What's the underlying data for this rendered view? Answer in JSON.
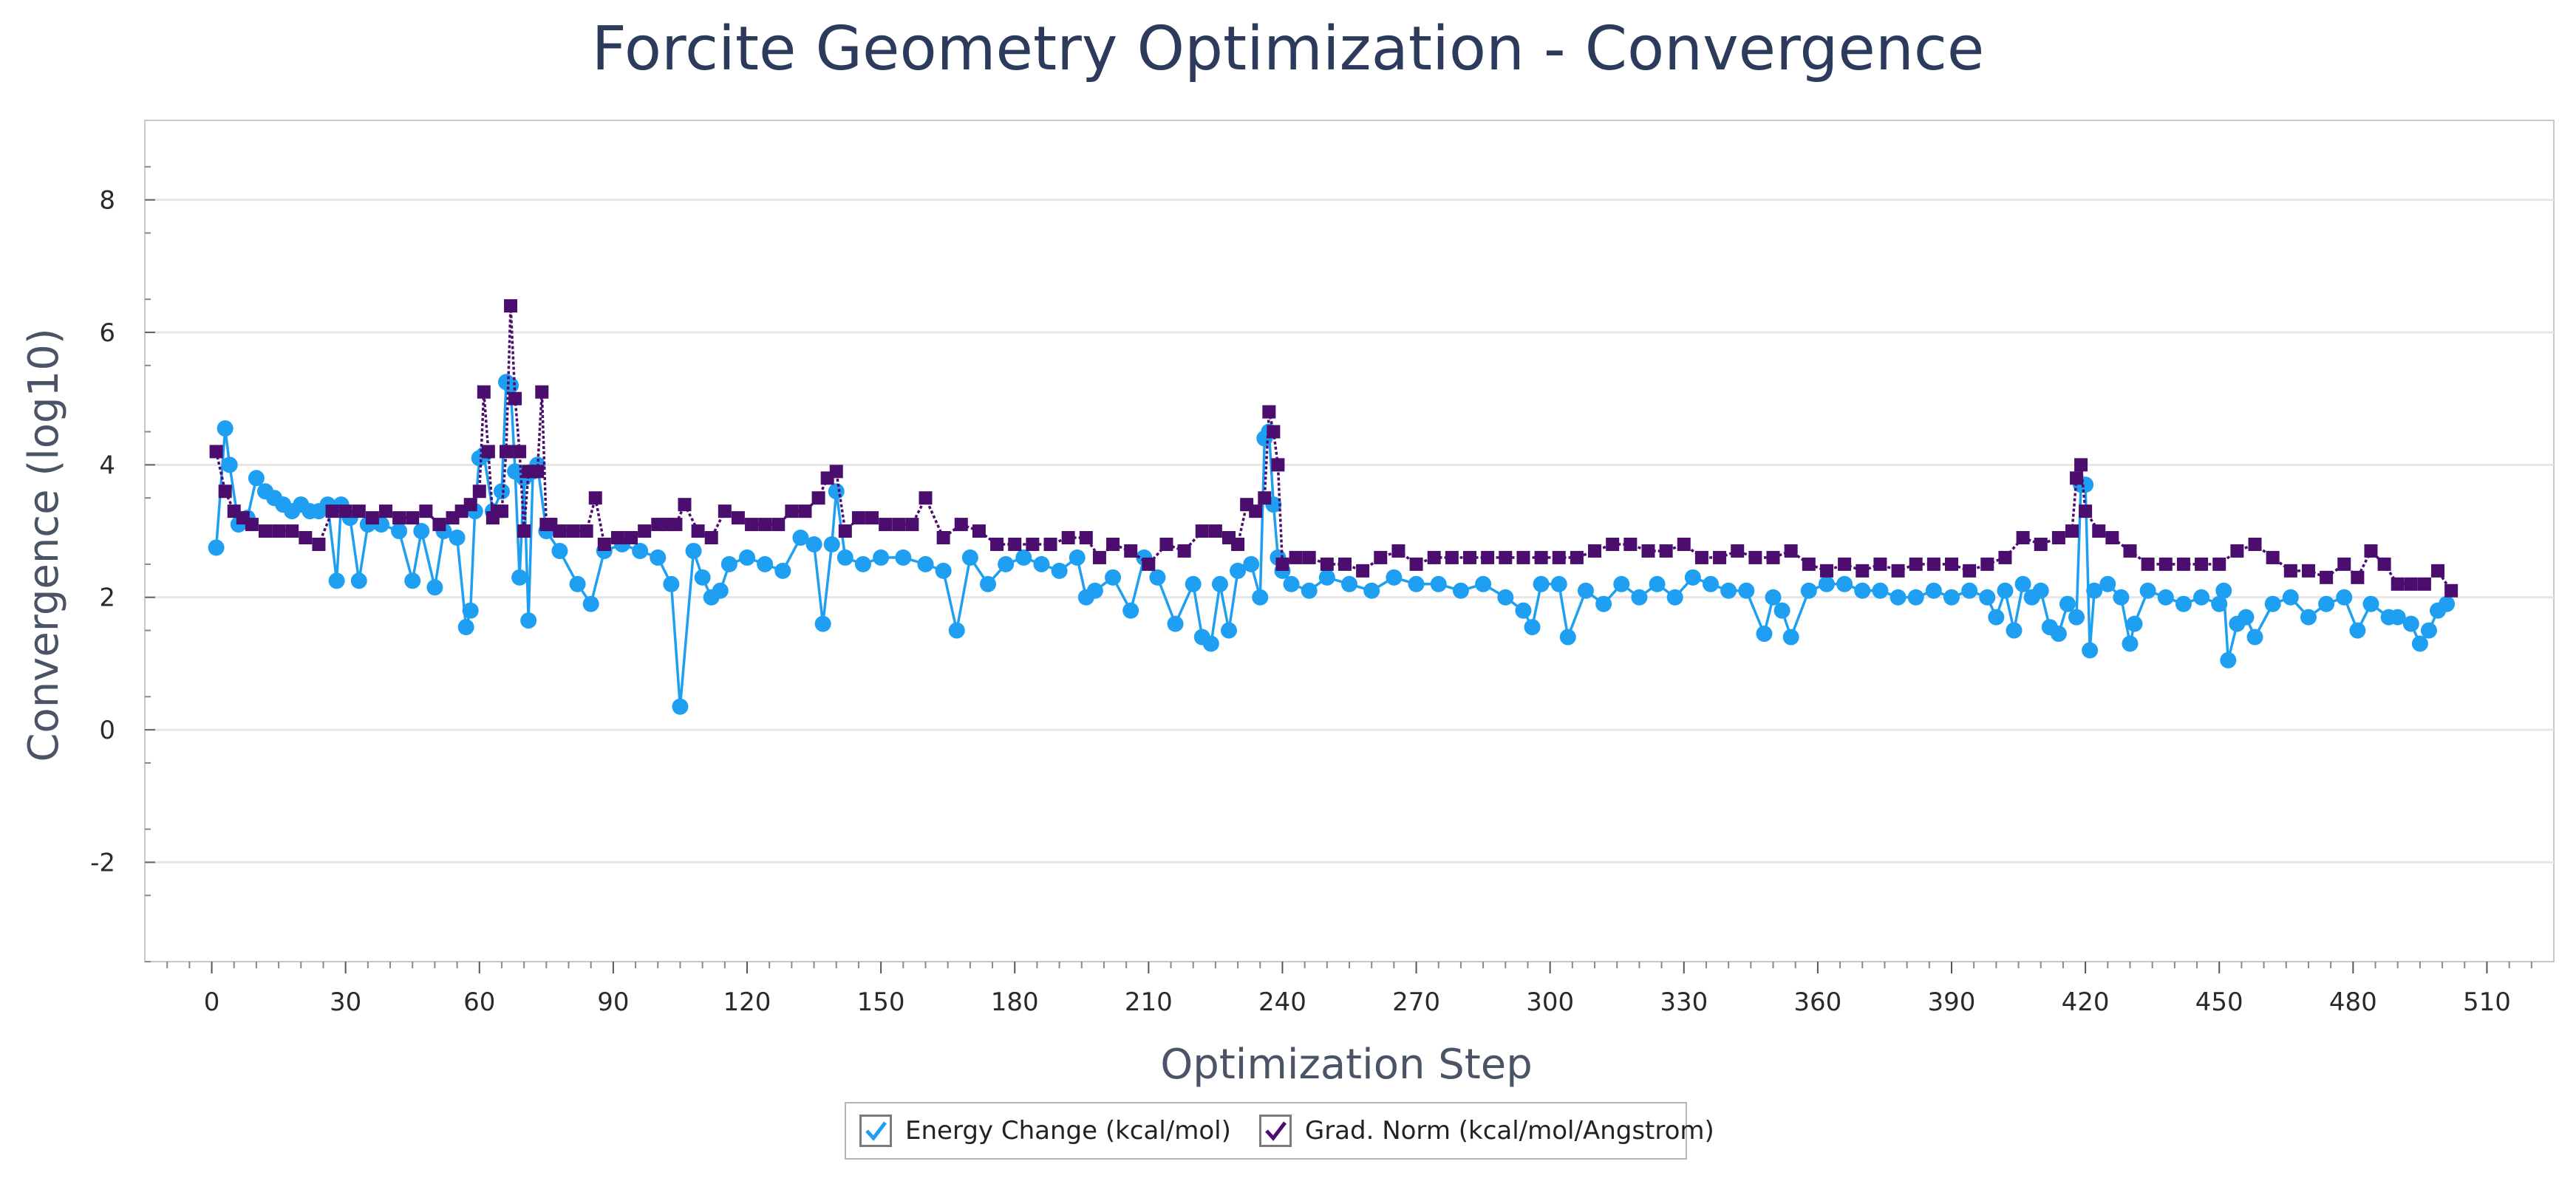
{
  "page_title": "Forcite Geometry Optimization - Convergence",
  "legend": {
    "items": [
      {
        "label": "Energy Change (kcal/mol)",
        "checked": true,
        "color": "#1e9ff2"
      },
      {
        "label": "Grad. Norm (kcal/mol/Angstrom)",
        "checked": true,
        "color": "#4b0d6e"
      }
    ]
  },
  "chart_data": {
    "type": "line",
    "title": "Forcite Geometry Optimization - Convergence",
    "xlabel": "Optimization Step",
    "ylabel": "Convergence (log10)",
    "xlim": [
      -15,
      525
    ],
    "ylim": [
      -3.5,
      9.2
    ],
    "xticks": [
      0,
      30,
      60,
      90,
      120,
      150,
      180,
      210,
      240,
      270,
      300,
      330,
      360,
      390,
      420,
      450,
      480,
      510
    ],
    "yticks": [
      -2,
      0,
      2,
      4,
      6,
      8
    ],
    "grid": true,
    "legend_position": "bottom-center",
    "series": [
      {
        "name": "Energy Change (kcal/mol)",
        "color": "#1e9ff2",
        "marker": "circle",
        "style": "solid",
        "x": [
          1,
          3,
          4,
          6,
          8,
          10,
          12,
          14,
          16,
          18,
          20,
          22,
          24,
          26,
          28,
          29,
          31,
          33,
          35,
          38,
          42,
          45,
          47,
          50,
          52,
          55,
          57,
          58,
          59,
          60,
          61,
          63,
          65,
          66,
          67,
          68,
          69,
          70,
          71,
          72,
          73,
          75,
          78,
          82,
          85,
          88,
          92,
          96,
          100,
          103,
          105,
          108,
          110,
          112,
          114,
          116,
          120,
          124,
          128,
          132,
          135,
          137,
          139,
          140,
          142,
          146,
          150,
          155,
          160,
          164,
          167,
          170,
          174,
          178,
          182,
          186,
          190,
          194,
          196,
          198,
          202,
          206,
          209,
          212,
          216,
          220,
          222,
          224,
          226,
          228,
          230,
          233,
          235,
          236,
          237,
          238,
          239,
          240,
          242,
          246,
          250,
          255,
          260,
          265,
          270,
          275,
          280,
          285,
          290,
          294,
          296,
          298,
          302,
          304,
          308,
          312,
          316,
          320,
          324,
          328,
          332,
          336,
          340,
          344,
          348,
          350,
          352,
          354,
          358,
          362,
          366,
          370,
          374,
          378,
          382,
          386,
          390,
          394,
          398,
          400,
          402,
          404,
          406,
          408,
          410,
          412,
          414,
          416,
          418,
          419,
          420,
          421,
          422,
          425,
          428,
          430,
          431,
          434,
          438,
          442,
          446,
          450,
          451,
          452,
          454,
          456,
          458,
          462,
          466,
          470,
          474,
          478,
          481,
          484,
          488,
          490,
          493,
          495,
          497,
          499,
          501
        ],
        "values": [
          2.75,
          4.55,
          4.0,
          3.1,
          3.2,
          3.8,
          3.6,
          3.5,
          3.4,
          3.3,
          3.4,
          3.3,
          3.3,
          3.4,
          2.25,
          3.4,
          3.2,
          2.25,
          3.1,
          3.1,
          3.0,
          2.25,
          3.0,
          2.15,
          3.0,
          2.9,
          1.55,
          1.8,
          3.3,
          4.1,
          4.15,
          3.3,
          3.6,
          5.25,
          5.2,
          3.9,
          2.3,
          3.8,
          1.65,
          3.9,
          4.0,
          3.0,
          2.7,
          2.2,
          1.9,
          2.7,
          2.8,
          2.7,
          2.6,
          2.2,
          0.35,
          2.7,
          2.3,
          2.0,
          2.1,
          2.5,
          2.6,
          2.5,
          2.4,
          2.9,
          2.8,
          1.6,
          2.8,
          3.6,
          2.6,
          2.5,
          2.6,
          2.6,
          2.5,
          2.4,
          1.5,
          2.6,
          2.2,
          2.5,
          2.6,
          2.5,
          2.4,
          2.6,
          2.0,
          2.1,
          2.3,
          1.8,
          2.6,
          2.3,
          1.6,
          2.2,
          1.4,
          1.3,
          2.2,
          1.5,
          2.4,
          2.5,
          2.0,
          4.4,
          4.5,
          3.4,
          2.6,
          2.4,
          2.2,
          2.1,
          2.3,
          2.2,
          2.1,
          2.3,
          2.2,
          2.2,
          2.1,
          2.2,
          2.0,
          1.8,
          1.55,
          2.2,
          2.2,
          1.4,
          2.1,
          1.9,
          2.2,
          2.0,
          2.2,
          2.0,
          2.3,
          2.2,
          2.1,
          2.1,
          1.45,
          2.0,
          1.8,
          1.4,
          2.1,
          2.2,
          2.2,
          2.1,
          2.1,
          2.0,
          2.0,
          2.1,
          2.0,
          2.1,
          2.0,
          1.7,
          2.1,
          1.5,
          2.2,
          2.0,
          2.1,
          1.55,
          1.45,
          1.9,
          1.7,
          3.7,
          3.7,
          1.2,
          2.1,
          2.2,
          2.0,
          1.3,
          1.6,
          2.1,
          2.0,
          1.9,
          2.0,
          1.9,
          2.1,
          1.05,
          1.6,
          1.7,
          1.4,
          1.9,
          2.0,
          1.7,
          1.9,
          2.0,
          1.5,
          1.9,
          1.7,
          1.7,
          1.6,
          1.3,
          1.5,
          1.8,
          1.9
        ]
      },
      {
        "name": "Grad. Norm (kcal/mol/Angstrom)",
        "color": "#4b0d6e",
        "marker": "square",
        "style": "dotted",
        "x": [
          1,
          3,
          5,
          7,
          9,
          12,
          15,
          18,
          21,
          24,
          27,
          30,
          33,
          36,
          39,
          42,
          45,
          48,
          51,
          54,
          56,
          58,
          60,
          61,
          62,
          63,
          64,
          65,
          66,
          67,
          68,
          69,
          70,
          71,
          72,
          73,
          74,
          75,
          76,
          78,
          81,
          84,
          86,
          88,
          91,
          94,
          97,
          100,
          102,
          104,
          106,
          109,
          112,
          115,
          118,
          121,
          124,
          127,
          130,
          133,
          136,
          138,
          140,
          142,
          145,
          148,
          151,
          154,
          157,
          160,
          164,
          168,
          172,
          176,
          180,
          184,
          188,
          192,
          196,
          199,
          202,
          206,
          210,
          214,
          218,
          222,
          225,
          228,
          230,
          232,
          234,
          236,
          237,
          238,
          239,
          240,
          243,
          246,
          250,
          254,
          258,
          262,
          266,
          270,
          274,
          278,
          282,
          286,
          290,
          294,
          298,
          302,
          306,
          310,
          314,
          318,
          322,
          326,
          330,
          334,
          338,
          342,
          346,
          350,
          354,
          358,
          362,
          366,
          370,
          374,
          378,
          382,
          386,
          390,
          394,
          398,
          402,
          406,
          410,
          414,
          417,
          418,
          419,
          420,
          423,
          426,
          430,
          434,
          438,
          442,
          446,
          450,
          454,
          458,
          462,
          466,
          470,
          474,
          478,
          481,
          484,
          487,
          490,
          493,
          496,
          499,
          502
        ],
        "values": [
          4.2,
          3.6,
          3.3,
          3.2,
          3.1,
          3.0,
          3.0,
          3.0,
          2.9,
          2.8,
          3.3,
          3.3,
          3.3,
          3.2,
          3.3,
          3.2,
          3.2,
          3.3,
          3.1,
          3.2,
          3.3,
          3.4,
          3.6,
          5.1,
          4.2,
          3.2,
          3.3,
          3.3,
          4.2,
          6.4,
          5.0,
          4.2,
          3.0,
          3.9,
          3.9,
          3.9,
          5.1,
          3.1,
          3.1,
          3.0,
          3.0,
          3.0,
          3.5,
          2.8,
          2.9,
          2.9,
          3.0,
          3.1,
          3.1,
          3.1,
          3.4,
          3.0,
          2.9,
          3.3,
          3.2,
          3.1,
          3.1,
          3.1,
          3.3,
          3.3,
          3.5,
          3.8,
          3.9,
          3.0,
          3.2,
          3.2,
          3.1,
          3.1,
          3.1,
          3.5,
          2.9,
          3.1,
          3.0,
          2.8,
          2.8,
          2.8,
          2.8,
          2.9,
          2.9,
          2.6,
          2.8,
          2.7,
          2.5,
          2.8,
          2.7,
          3.0,
          3.0,
          2.9,
          2.8,
          3.4,
          3.3,
          3.5,
          4.8,
          4.5,
          4.0,
          2.5,
          2.6,
          2.6,
          2.5,
          2.5,
          2.4,
          2.6,
          2.7,
          2.5,
          2.6,
          2.6,
          2.6,
          2.6,
          2.6,
          2.6,
          2.6,
          2.6,
          2.6,
          2.7,
          2.8,
          2.8,
          2.7,
          2.7,
          2.8,
          2.6,
          2.6,
          2.7,
          2.6,
          2.6,
          2.7,
          2.5,
          2.4,
          2.5,
          2.4,
          2.5,
          2.4,
          2.5,
          2.5,
          2.5,
          2.4,
          2.5,
          2.6,
          2.9,
          2.8,
          2.9,
          3.0,
          3.8,
          4.0,
          3.3,
          3.0,
          2.9,
          2.7,
          2.5,
          2.5,
          2.5,
          2.5,
          2.5,
          2.7,
          2.8,
          2.6,
          2.4,
          2.4,
          2.3,
          2.5,
          2.3,
          2.7,
          2.5,
          2.2,
          2.2,
          2.2,
          2.4,
          2.1
        ]
      }
    ]
  }
}
